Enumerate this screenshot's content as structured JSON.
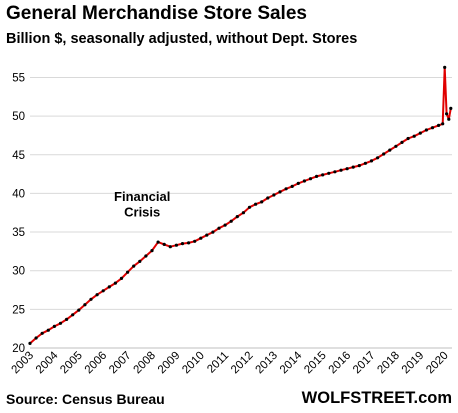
{
  "chart_data": {
    "type": "line",
    "title": "General Merchandise  Store Sales",
    "subtitle": "Billion $, seasonally adjusted, without Dept. Stores",
    "source": "Source: Census Bureau",
    "brand": "WOLFSTREET.com",
    "xlabel": "",
    "ylabel": "",
    "xlim": [
      2003.0,
      2020.3
    ],
    "ylim": [
      20,
      57
    ],
    "x_ticks": [
      "2003",
      "2004",
      "2005",
      "2006",
      "2007",
      "2008",
      "2009",
      "2010",
      "2011",
      "2012",
      "2013",
      "2014",
      "2015",
      "2016",
      "2017",
      "2018",
      "2019",
      "2020"
    ],
    "y_ticks": [
      20,
      25,
      30,
      35,
      40,
      45,
      50,
      55
    ],
    "grid": "horizontal",
    "annotations": [
      {
        "text": "Financial",
        "x": 2007.6,
        "y": 39.0
      },
      {
        "text": "Crisis",
        "x": 2007.6,
        "y": 37.0
      }
    ],
    "series": [
      {
        "line_color": "#e00000",
        "marker_color": "#000000",
        "x": [
          2003.0,
          2003.25,
          2003.5,
          2003.75,
          2004.0,
          2004.25,
          2004.5,
          2004.75,
          2005.0,
          2005.25,
          2005.5,
          2005.75,
          2006.0,
          2006.25,
          2006.5,
          2006.75,
          2007.0,
          2007.25,
          2007.5,
          2007.75,
          2008.0,
          2008.25,
          2008.5,
          2008.75,
          2009.0,
          2009.25,
          2009.5,
          2009.75,
          2010.0,
          2010.25,
          2010.5,
          2010.75,
          2011.0,
          2011.25,
          2011.5,
          2011.75,
          2012.0,
          2012.25,
          2012.5,
          2012.75,
          2013.0,
          2013.25,
          2013.5,
          2013.75,
          2014.0,
          2014.25,
          2014.5,
          2014.75,
          2015.0,
          2015.25,
          2015.5,
          2015.75,
          2016.0,
          2016.25,
          2016.5,
          2016.75,
          2017.0,
          2017.25,
          2017.5,
          2017.75,
          2018.0,
          2018.25,
          2018.5,
          2018.75,
          2019.0,
          2019.25,
          2019.5,
          2019.75,
          2019.92,
          2020.0,
          2020.08,
          2020.17,
          2020.25
        ],
        "values": [
          20.6,
          21.3,
          21.9,
          22.3,
          22.8,
          23.2,
          23.7,
          24.3,
          24.9,
          25.6,
          26.3,
          26.9,
          27.4,
          27.9,
          28.4,
          29.0,
          29.8,
          30.6,
          31.2,
          31.9,
          32.6,
          33.7,
          33.4,
          33.1,
          33.3,
          33.5,
          33.6,
          33.8,
          34.2,
          34.6,
          35.0,
          35.5,
          35.9,
          36.4,
          37.0,
          37.5,
          38.2,
          38.6,
          38.9,
          39.4,
          39.8,
          40.2,
          40.6,
          40.9,
          41.3,
          41.6,
          41.9,
          42.2,
          42.4,
          42.6,
          42.8,
          43.0,
          43.2,
          43.4,
          43.6,
          43.9,
          44.2,
          44.6,
          45.1,
          45.6,
          46.1,
          46.6,
          47.1,
          47.4,
          47.8,
          48.2,
          48.5,
          48.8,
          49.0,
          56.3,
          50.3,
          49.6,
          51.0
        ]
      }
    ]
  }
}
